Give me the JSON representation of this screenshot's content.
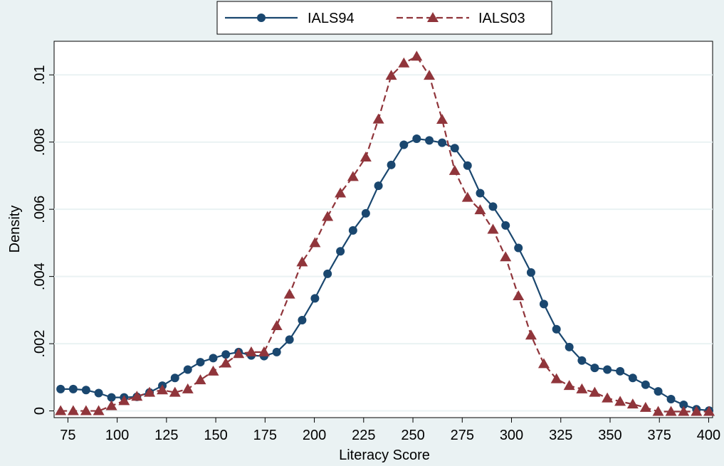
{
  "chart_data": {
    "type": "line",
    "xlabel": "Literacy Score",
    "ylabel": "Density",
    "xlim": [
      68,
      402
    ],
    "ylim": [
      -0.0002,
      0.011
    ],
    "x_ticks": [
      75,
      100,
      125,
      150,
      175,
      200,
      225,
      250,
      275,
      300,
      325,
      350,
      375,
      400
    ],
    "y_ticks": [
      0,
      0.002,
      0.004,
      0.006,
      0.008,
      0.01
    ],
    "y_tick_labels": [
      "0",
      ".002",
      ".004",
      ".006",
      ".008",
      ".01"
    ],
    "grid": "horizontal",
    "legend_position": "top",
    "series": [
      {
        "name": "IALS94",
        "color": "#1a476f",
        "marker": "circle",
        "line": "solid",
        "x": [
          71.3,
          77.7,
          84.2,
          90.6,
          97.1,
          103.5,
          110,
          116.4,
          122.9,
          129.3,
          135.8,
          142.2,
          148.7,
          155.1,
          161.6,
          168,
          174.5,
          180.9,
          187.4,
          193.8,
          200.3,
          206.7,
          213.2,
          219.6,
          226.1,
          232.5,
          239,
          245.4,
          251.9,
          258.3,
          264.8,
          271.2,
          277.7,
          284.1,
          290.6,
          297,
          303.5,
          309.9,
          316.4,
          322.8,
          329.3,
          335.7,
          342.2,
          348.6,
          355.1,
          361.5,
          368,
          374.4,
          380.9,
          387.3,
          393.8,
          400.2
        ],
        "values": [
          0.00065,
          0.00065,
          0.00062,
          0.00053,
          0.0004,
          0.0004,
          0.00042,
          0.00055,
          0.00075,
          0.00098,
          0.00123,
          0.00145,
          0.00157,
          0.00168,
          0.00175,
          0.00165,
          0.00163,
          0.00175,
          0.00212,
          0.0027,
          0.00335,
          0.00408,
          0.00475,
          0.00537,
          0.00588,
          0.0067,
          0.00732,
          0.00792,
          0.0081,
          0.00805,
          0.00798,
          0.00782,
          0.0073,
          0.00648,
          0.00608,
          0.00552,
          0.00485,
          0.00412,
          0.00318,
          0.00243,
          0.0019,
          0.0015,
          0.00128,
          0.00123,
          0.00118,
          0.00098,
          0.00078,
          0.00058,
          0.00035,
          0.00018,
          5e-05,
          1e-05
        ]
      },
      {
        "name": "IALS03",
        "color": "#90353b",
        "marker": "triangle",
        "line": "dashed",
        "x": [
          71.3,
          77.7,
          84.2,
          90.6,
          97.1,
          103.5,
          110,
          116.4,
          122.9,
          129.3,
          135.8,
          142.2,
          148.7,
          155.1,
          161.6,
          168,
          174.5,
          180.9,
          187.4,
          193.8,
          200.3,
          206.7,
          213.2,
          219.6,
          226.1,
          232.5,
          239,
          245.4,
          251.9,
          258.3,
          264.8,
          271.2,
          277.7,
          284.1,
          290.6,
          297,
          303.5,
          309.9,
          316.4,
          322.8,
          329.3,
          335.7,
          342.2,
          348.6,
          355.1,
          361.5,
          368,
          374.4,
          380.9,
          387.3,
          393.8,
          400.2
        ],
        "values": [
          0,
          0,
          0,
          0,
          0.00015,
          0.0003,
          0.00043,
          0.00055,
          0.00062,
          0.00055,
          0.00065,
          0.00092,
          0.00118,
          0.00142,
          0.0017,
          0.00175,
          0.00175,
          0.00253,
          0.00347,
          0.00443,
          0.005,
          0.00578,
          0.00648,
          0.00697,
          0.00755,
          0.00868,
          0.00998,
          0.01035,
          0.01055,
          0.00998,
          0.00867,
          0.00715,
          0.00635,
          0.00598,
          0.0054,
          0.00458,
          0.00342,
          0.00225,
          0.0014,
          0.00095,
          0.00075,
          0.00065,
          0.00055,
          0.00038,
          0.00028,
          0.0002,
          0.0001,
          -2e-05,
          -2e-05,
          -2e-05,
          -2e-05,
          -2e-05
        ]
      }
    ]
  }
}
